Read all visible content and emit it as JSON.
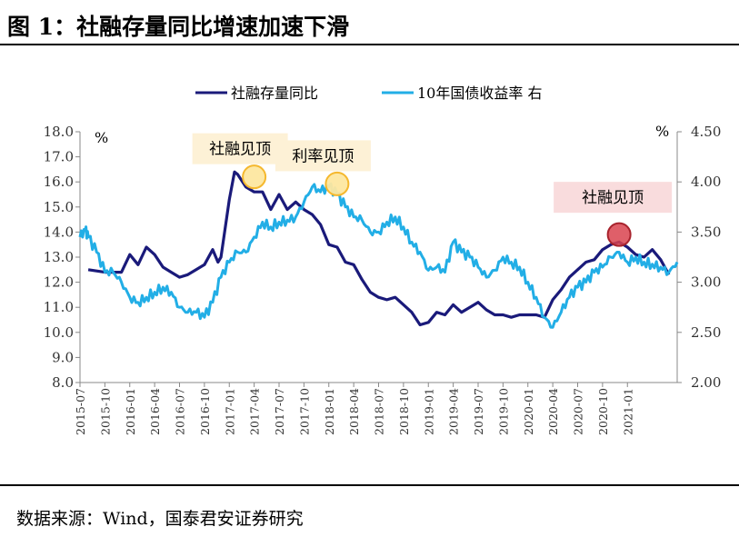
{
  "figure": {
    "title": "图 1：社融存量同比增速加速下滑",
    "source": "数据来源：Wind，国泰君安证券研究"
  },
  "colors": {
    "tsf": "#1a1a7a",
    "bond": "#22aee6",
    "peak_yellow_fill": "#fde7a0",
    "peak_yellow_edge": "#f5b82e",
    "peak_red_fill": "#d9434f",
    "peak_red_edge": "#a8232d",
    "label_yellow_bg": "#fdf1d6",
    "label_pink_bg": "#f9dcdd"
  },
  "chart_data": {
    "type": "line",
    "left_axis": {
      "unit": "%",
      "ylim": [
        8.0,
        18.0
      ],
      "ticks": [
        "8.0",
        "9.0",
        "10.0",
        "11.0",
        "12.0",
        "13.0",
        "14.0",
        "15.0",
        "16.0",
        "17.0",
        "18.0"
      ]
    },
    "right_axis": {
      "unit": "%",
      "ylim": [
        2.0,
        4.5
      ],
      "ticks": [
        "2.00",
        "2.50",
        "3.00",
        "3.50",
        "4.00",
        "4.50"
      ]
    },
    "x_ticks": [
      "2015-07",
      "2015-10",
      "2016-01",
      "2016-04",
      "2016-07",
      "2016-10",
      "2017-01",
      "2017-04",
      "2017-07",
      "2017-10",
      "2018-01",
      "2018-04",
      "2018-07",
      "2018-10",
      "2019-01",
      "2019-04",
      "2019-07",
      "2019-10",
      "2020-01",
      "2020-04",
      "2020-07",
      "2020-10",
      "2021-01"
    ],
    "x_range": [
      "2015-07",
      "2021-07"
    ],
    "grid": false,
    "legend_position": "top",
    "series": [
      {
        "name": "社融存量同比",
        "axis": "left",
        "color": "#1a1a7a",
        "points": [
          [
            "2015-08",
            12.5
          ],
          [
            "2015-10",
            12.4
          ],
          [
            "2015-12",
            12.4
          ],
          [
            "2016-01",
            13.1
          ],
          [
            "2016-02",
            12.7
          ],
          [
            "2016-03",
            13.4
          ],
          [
            "2016-04",
            13.1
          ],
          [
            "2016-05",
            12.6
          ],
          [
            "2016-06",
            12.4
          ],
          [
            "2016-07",
            12.2
          ],
          [
            "2016-08",
            12.3
          ],
          [
            "2016-09",
            12.5
          ],
          [
            "2016-10",
            12.7
          ],
          [
            "2016-11",
            13.3
          ],
          [
            "2016-11-20",
            12.8
          ],
          [
            "2016-12",
            13.0
          ],
          [
            "2017-01",
            15.3
          ],
          [
            "2017-01-20",
            16.4
          ],
          [
            "2017-02",
            16.3
          ],
          [
            "2017-03",
            15.8
          ],
          [
            "2017-04",
            15.6
          ],
          [
            "2017-05",
            15.6
          ],
          [
            "2017-06",
            14.9
          ],
          [
            "2017-07",
            15.5
          ],
          [
            "2017-08",
            14.9
          ],
          [
            "2017-09",
            15.2
          ],
          [
            "2017-10",
            14.9
          ],
          [
            "2017-11",
            14.7
          ],
          [
            "2017-12",
            14.3
          ],
          [
            "2018-01",
            13.5
          ],
          [
            "2018-02",
            13.4
          ],
          [
            "2018-03",
            12.8
          ],
          [
            "2018-04",
            12.7
          ],
          [
            "2018-05",
            12.1
          ],
          [
            "2018-06",
            11.6
          ],
          [
            "2018-07",
            11.4
          ],
          [
            "2018-08",
            11.3
          ],
          [
            "2018-09",
            11.4
          ],
          [
            "2018-10",
            11.1
          ],
          [
            "2018-11",
            10.8
          ],
          [
            "2018-12",
            10.3
          ],
          [
            "2019-01",
            10.4
          ],
          [
            "2019-02",
            10.8
          ],
          [
            "2019-03",
            10.7
          ],
          [
            "2019-04",
            11.1
          ],
          [
            "2019-05",
            10.8
          ],
          [
            "2019-06",
            11.0
          ],
          [
            "2019-07",
            11.2
          ],
          [
            "2019-08",
            10.9
          ],
          [
            "2019-09",
            10.7
          ],
          [
            "2019-10",
            10.7
          ],
          [
            "2019-11",
            10.6
          ],
          [
            "2019-12",
            10.7
          ],
          [
            "2020-01",
            10.7
          ],
          [
            "2020-02",
            10.7
          ],
          [
            "2020-03",
            10.6
          ],
          [
            "2020-04",
            11.3
          ],
          [
            "2020-05",
            11.7
          ],
          [
            "2020-06",
            12.2
          ],
          [
            "2020-07",
            12.5
          ],
          [
            "2020-08",
            12.8
          ],
          [
            "2020-09",
            12.9
          ],
          [
            "2020-10",
            13.3
          ],
          [
            "2020-11",
            13.5
          ],
          [
            "2020-12",
            13.6
          ],
          [
            "2021-01",
            13.4
          ],
          [
            "2021-02",
            13.1
          ],
          [
            "2021-03",
            13.0
          ],
          [
            "2021-04",
            13.3
          ],
          [
            "2021-05",
            12.9
          ],
          [
            "2021-06",
            12.3
          ]
        ]
      },
      {
        "name": "10年国债收益率 右",
        "axis": "right",
        "color": "#22aee6",
        "points": [
          [
            "2015-07",
            3.45
          ],
          [
            "2015-07-20",
            3.52
          ],
          [
            "2015-08",
            3.45
          ],
          [
            "2015-09",
            3.3
          ],
          [
            "2015-10",
            3.1
          ],
          [
            "2015-11",
            3.1
          ],
          [
            "2015-12",
            3.0
          ],
          [
            "2016-01",
            2.85
          ],
          [
            "2016-02",
            2.8
          ],
          [
            "2016-03",
            2.85
          ],
          [
            "2016-04",
            2.9
          ],
          [
            "2016-05",
            2.95
          ],
          [
            "2016-06",
            2.9
          ],
          [
            "2016-07",
            2.75
          ],
          [
            "2016-08",
            2.7
          ],
          [
            "2016-09",
            2.7
          ],
          [
            "2016-10",
            2.65
          ],
          [
            "2016-11",
            2.8
          ],
          [
            "2016-12",
            3.05
          ],
          [
            "2017-01",
            3.2
          ],
          [
            "2017-02",
            3.3
          ],
          [
            "2017-03",
            3.3
          ],
          [
            "2017-04",
            3.45
          ],
          [
            "2017-05",
            3.6
          ],
          [
            "2017-06",
            3.55
          ],
          [
            "2017-07",
            3.6
          ],
          [
            "2017-08",
            3.62
          ],
          [
            "2017-09",
            3.65
          ],
          [
            "2017-10",
            3.8
          ],
          [
            "2017-11",
            3.95
          ],
          [
            "2017-12",
            3.9
          ],
          [
            "2018-01",
            3.95
          ],
          [
            "2018-02",
            3.88
          ],
          [
            "2018-03",
            3.75
          ],
          [
            "2018-04",
            3.65
          ],
          [
            "2018-05",
            3.62
          ],
          [
            "2018-06",
            3.5
          ],
          [
            "2018-07",
            3.5
          ],
          [
            "2018-08",
            3.6
          ],
          [
            "2018-09",
            3.65
          ],
          [
            "2018-10",
            3.55
          ],
          [
            "2018-11",
            3.4
          ],
          [
            "2018-12",
            3.3
          ],
          [
            "2019-01",
            3.12
          ],
          [
            "2019-02",
            3.15
          ],
          [
            "2019-03",
            3.1
          ],
          [
            "2019-04",
            3.4
          ],
          [
            "2019-05",
            3.3
          ],
          [
            "2019-06",
            3.25
          ],
          [
            "2019-07",
            3.15
          ],
          [
            "2019-08",
            3.05
          ],
          [
            "2019-09",
            3.12
          ],
          [
            "2019-10",
            3.25
          ],
          [
            "2019-11",
            3.2
          ],
          [
            "2019-12",
            3.15
          ],
          [
            "2020-01",
            3.0
          ],
          [
            "2020-02",
            2.85
          ],
          [
            "2020-03",
            2.65
          ],
          [
            "2020-04",
            2.55
          ],
          [
            "2020-05",
            2.7
          ],
          [
            "2020-06",
            2.85
          ],
          [
            "2020-07",
            2.95
          ],
          [
            "2020-08",
            3.0
          ],
          [
            "2020-09",
            3.1
          ],
          [
            "2020-10",
            3.15
          ],
          [
            "2020-11",
            3.25
          ],
          [
            "2020-12",
            3.3
          ],
          [
            "2021-01",
            3.2
          ],
          [
            "2021-02",
            3.25
          ],
          [
            "2021-03",
            3.2
          ],
          [
            "2021-04",
            3.18
          ],
          [
            "2021-05",
            3.15
          ],
          [
            "2021-06",
            3.1
          ],
          [
            "2021-07",
            3.2
          ]
        ]
      }
    ],
    "annotations": [
      {
        "text": "社融见顶",
        "x": "2017-04",
        "y": 16.2,
        "axis": "left",
        "marker": "yellow"
      },
      {
        "text": "利率见顶",
        "x": "2018-02",
        "y": 3.98,
        "axis": "right",
        "marker": "yellow"
      },
      {
        "text": "社融见顶",
        "x": "2020-12",
        "y": 13.9,
        "axis": "left",
        "marker": "red"
      }
    ]
  }
}
